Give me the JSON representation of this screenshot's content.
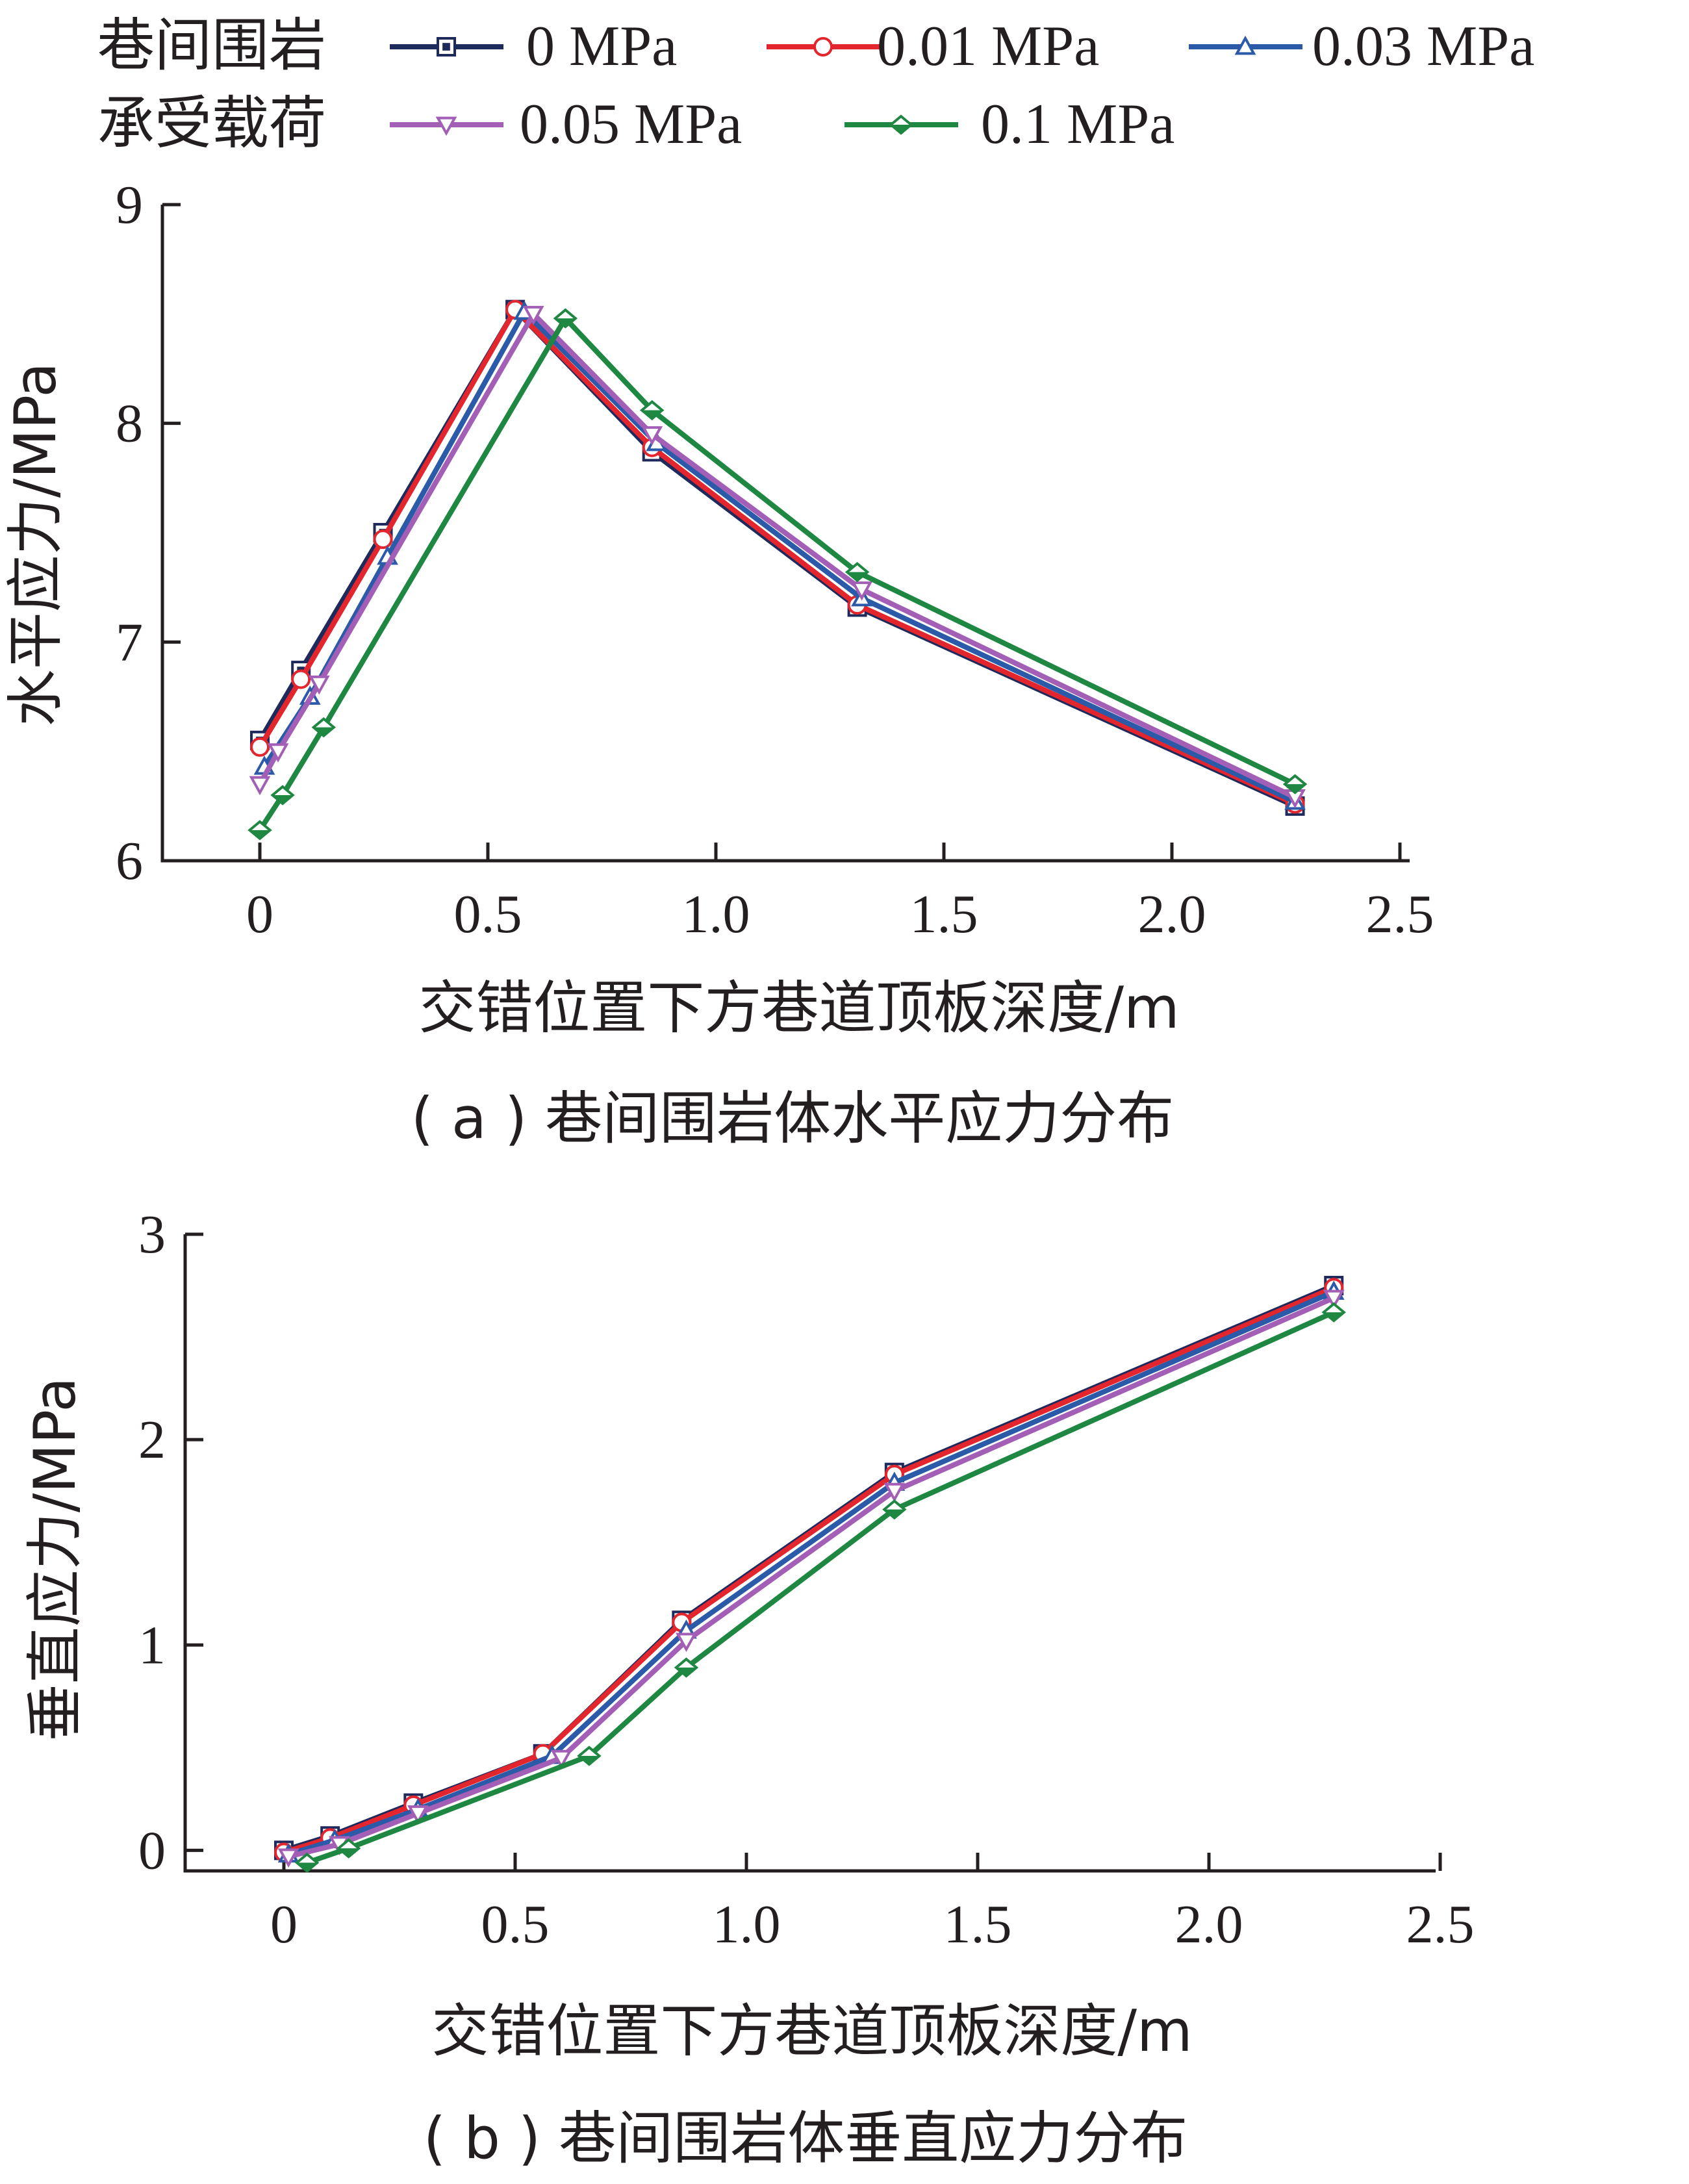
{
  "legend": {
    "title_line1": "巷间围岩",
    "title_line2": "承受载荷"
  },
  "series_style": [
    {
      "color": "#1f2a5c",
      "marker": "square-filled"
    },
    {
      "color": "#e3262e",
      "marker": "circle-open"
    },
    {
      "color": "#2a5aa8",
      "marker": "triangle-open"
    },
    {
      "color": "#a35fb5",
      "marker": "triangle-down-open"
    },
    {
      "color": "#1e8741",
      "marker": "diamond-filled"
    }
  ],
  "chart_data": [
    {
      "type": "line",
      "id": "a",
      "caption": "( a ) 巷间围岩体水平应力分布",
      "xlabel": "交错位置下方巷道顶板深度/m",
      "ylabel": "水平应力/MPa",
      "xlim": [
        -0.22,
        2.5
      ],
      "ylim": [
        6,
        9
      ],
      "xticks": [
        0,
        0.5,
        1.0,
        1.5,
        2.0,
        2.5
      ],
      "xtick_labels": [
        "0",
        "0.5",
        "1.0",
        "1.5",
        "2.0",
        "2.5"
      ],
      "yticks": [
        6,
        7,
        8,
        9
      ],
      "ytick_labels": [
        "6",
        "7",
        "8",
        "9"
      ],
      "series": [
        {
          "name": "0 MPa",
          "x": [
            0,
            0.09,
            0.27,
            0.56,
            0.86,
            1.31,
            2.27
          ],
          "y": [
            6.55,
            6.87,
            7.5,
            8.52,
            7.87,
            7.16,
            6.25
          ]
        },
        {
          "name": "0.01 MPa",
          "x": [
            0,
            0.09,
            0.27,
            0.56,
            0.86,
            1.31,
            2.27
          ],
          "y": [
            6.52,
            6.83,
            7.47,
            8.52,
            7.89,
            7.17,
            6.26
          ]
        },
        {
          "name": "0.03 MPa",
          "x": [
            0.01,
            0.11,
            0.28,
            0.58,
            0.87,
            1.32,
            2.27
          ],
          "y": [
            6.43,
            6.75,
            7.39,
            8.51,
            7.91,
            7.2,
            6.27
          ]
        },
        {
          "name": "0.05 MPa",
          "x": [
            0,
            0.04,
            0.13,
            0.6,
            0.86,
            1.32,
            2.27
          ],
          "y": [
            6.35,
            6.5,
            6.81,
            8.5,
            7.95,
            7.24,
            6.29
          ]
        },
        {
          "name": "0.1 MPa",
          "x": [
            0,
            0.05,
            0.14,
            0.67,
            0.86,
            1.31,
            2.27
          ],
          "y": [
            6.14,
            6.3,
            6.61,
            8.48,
            8.06,
            7.32,
            6.35
          ]
        }
      ]
    },
    {
      "type": "line",
      "id": "b",
      "caption": "( b ) 巷间围岩体垂直应力分布",
      "xlabel": "交错位置下方巷道顶板深度/m",
      "ylabel": "垂直应力/MPa",
      "xlim": [
        -0.22,
        2.5
      ],
      "ylim": [
        -0.1,
        3
      ],
      "xticks": [
        0,
        0.5,
        1.0,
        1.5,
        2.0,
        2.5
      ],
      "xtick_labels": [
        "0",
        "0.5",
        "1.0",
        "1.5",
        "2.0",
        "2.5"
      ],
      "yticks": [
        0,
        1,
        2,
        3
      ],
      "ytick_labels": [
        "0",
        "1",
        "2",
        "3"
      ],
      "series": [
        {
          "name": "0 MPa",
          "x": [
            0,
            0.1,
            0.28,
            0.56,
            0.86,
            1.32,
            2.27
          ],
          "y": [
            0.0,
            0.07,
            0.23,
            0.47,
            1.12,
            1.84,
            2.75
          ]
        },
        {
          "name": "0.01 MPa",
          "x": [
            0,
            0.1,
            0.28,
            0.56,
            0.86,
            1.32,
            2.27
          ],
          "y": [
            -0.01,
            0.06,
            0.22,
            0.47,
            1.11,
            1.83,
            2.74
          ]
        },
        {
          "name": "0.03 MPa",
          "x": [
            0.01,
            0.11,
            0.29,
            0.58,
            0.87,
            1.32,
            2.27
          ],
          "y": [
            -0.02,
            0.05,
            0.2,
            0.46,
            1.07,
            1.79,
            2.72
          ]
        },
        {
          "name": "0.05 MPa",
          "x": [
            0.01,
            0.12,
            0.29,
            0.6,
            0.87,
            1.32,
            2.27
          ],
          "y": [
            -0.03,
            0.03,
            0.18,
            0.45,
            1.02,
            1.75,
            2.69
          ]
        },
        {
          "name": "0.1 MPa",
          "x": [
            0.05,
            0.14,
            0.66,
            0.87,
            1.32,
            2.27
          ],
          "y": [
            -0.06,
            0.01,
            0.46,
            0.89,
            1.66,
            2.62
          ]
        }
      ]
    }
  ]
}
